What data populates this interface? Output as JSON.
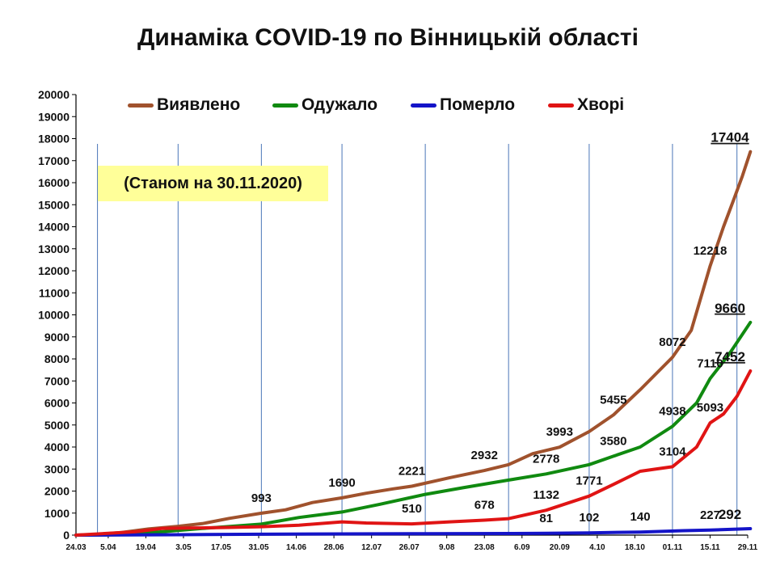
{
  "title": "Динаміка COVID-19 по Вінницькій області",
  "note": "(Станом на 30.11.2020)",
  "chart_data": {
    "type": "line",
    "title": "Динаміка COVID-19 по Вінницькій області",
    "xlabel": "",
    "ylabel": "",
    "ylim": [
      0,
      20000
    ],
    "y_ticks": [
      0,
      1000,
      2000,
      3000,
      4000,
      5000,
      6000,
      7000,
      8000,
      9000,
      10000,
      11000,
      12000,
      13000,
      14000,
      15000,
      16000,
      17000,
      18000,
      19000,
      20000
    ],
    "x_range": [
      "2020-03-24",
      "2020-11-29"
    ],
    "x_ticks": [
      "24.03",
      "5.04",
      "19.04",
      "3.05",
      "17.05",
      "31.05",
      "14.06",
      "28.06",
      "12.07",
      "26.07",
      "9.08",
      "23.08",
      "6.09",
      "20.09",
      "4.10",
      "18.10",
      "01.11",
      "15.11",
      "29.11"
    ],
    "x_tick_dates": [
      "2020-03-24",
      "2020-04-05",
      "2020-04-19",
      "2020-05-03",
      "2020-05-17",
      "2020-05-31",
      "2020-06-14",
      "2020-06-28",
      "2020-07-12",
      "2020-07-26",
      "2020-08-09",
      "2020-08-23",
      "2020-09-06",
      "2020-09-20",
      "2020-10-04",
      "2020-10-18",
      "2020-11-01",
      "2020-11-15",
      "2020-11-29"
    ],
    "gridlines_vertical": [
      "2020-04-01",
      "2020-05-01",
      "2020-06-01",
      "2020-07-01",
      "2020-08-01",
      "2020-09-01",
      "2020-10-01",
      "2020-11-01",
      "2020-11-25"
    ],
    "legend_position": "top",
    "series": [
      {
        "name": "Виявлено",
        "color": "#a0522d",
        "points": [
          [
            "2020-03-24",
            0
          ],
          [
            "2020-04-01",
            30
          ],
          [
            "2020-04-10",
            120
          ],
          [
            "2020-04-20",
            280
          ],
          [
            "2020-05-01",
            400
          ],
          [
            "2020-05-10",
            520
          ],
          [
            "2020-05-20",
            760
          ],
          [
            "2020-06-01",
            993
          ],
          [
            "2020-06-10",
            1150
          ],
          [
            "2020-06-20",
            1480
          ],
          [
            "2020-07-01",
            1690
          ],
          [
            "2020-07-10",
            1900
          ],
          [
            "2020-07-20",
            2100
          ],
          [
            "2020-07-27",
            2221
          ],
          [
            "2020-08-10",
            2600
          ],
          [
            "2020-08-23",
            2932
          ],
          [
            "2020-09-01",
            3200
          ],
          [
            "2020-09-10",
            3700
          ],
          [
            "2020-09-20",
            3993
          ],
          [
            "2020-10-01",
            4700
          ],
          [
            "2020-10-10",
            5455
          ],
          [
            "2020-10-20",
            6600
          ],
          [
            "2020-11-01",
            8072
          ],
          [
            "2020-11-08",
            9300
          ],
          [
            "2020-11-15",
            12218
          ],
          [
            "2020-11-20",
            14000
          ],
          [
            "2020-11-24",
            15300
          ],
          [
            "2020-11-27",
            16300
          ],
          [
            "2020-11-30",
            17404
          ]
        ],
        "labels": [
          [
            "2020-06-01",
            993
          ],
          [
            "2020-07-01",
            1690
          ],
          [
            "2020-07-27",
            2221
          ],
          [
            "2020-08-23",
            2932
          ],
          [
            "2020-09-20",
            3993
          ],
          [
            "2020-10-10",
            5455
          ],
          [
            "2020-11-01",
            8072
          ],
          [
            "2020-11-15",
            12218
          ],
          [
            "2020-11-30",
            17404
          ]
        ]
      },
      {
        "name": "Одужало",
        "color": "#108a10",
        "points": [
          [
            "2020-03-24",
            0
          ],
          [
            "2020-04-10",
            20
          ],
          [
            "2020-04-25",
            150
          ],
          [
            "2020-05-10",
            300
          ],
          [
            "2020-06-01",
            500
          ],
          [
            "2020-06-15",
            800
          ],
          [
            "2020-07-01",
            1050
          ],
          [
            "2020-07-15",
            1400
          ],
          [
            "2020-08-01",
            1850
          ],
          [
            "2020-08-15",
            2150
          ],
          [
            "2020-09-01",
            2500
          ],
          [
            "2020-09-15",
            2778
          ],
          [
            "2020-10-01",
            3200
          ],
          [
            "2020-10-10",
            3580
          ],
          [
            "2020-10-20",
            4000
          ],
          [
            "2020-11-01",
            4938
          ],
          [
            "2020-11-10",
            6000
          ],
          [
            "2020-11-15",
            7110
          ],
          [
            "2020-11-22",
            8200
          ],
          [
            "2020-11-30",
            9660
          ]
        ],
        "labels": [
          [
            "2020-09-15",
            2778
          ],
          [
            "2020-10-10",
            3580
          ],
          [
            "2020-11-01",
            4938
          ],
          [
            "2020-11-15",
            7110
          ],
          [
            "2020-11-30",
            9660
          ]
        ]
      },
      {
        "name": "Померло",
        "color": "#1414c8",
        "points": [
          [
            "2020-03-24",
            0
          ],
          [
            "2020-05-01",
            20
          ],
          [
            "2020-06-01",
            40
          ],
          [
            "2020-07-01",
            55
          ],
          [
            "2020-08-01",
            65
          ],
          [
            "2020-09-01",
            75
          ],
          [
            "2020-09-15",
            81
          ],
          [
            "2020-10-01",
            102
          ],
          [
            "2020-10-20",
            140
          ],
          [
            "2020-11-05",
            200
          ],
          [
            "2020-11-15",
            227
          ],
          [
            "2020-11-30",
            292
          ]
        ],
        "labels": [
          [
            "2020-09-15",
            81
          ],
          [
            "2020-10-01",
            102
          ],
          [
            "2020-10-20",
            140
          ],
          [
            "2020-11-15",
            227
          ],
          [
            "2020-11-30",
            292
          ]
        ]
      },
      {
        "name": "Хворі",
        "color": "#e01414",
        "points": [
          [
            "2020-03-24",
            0
          ],
          [
            "2020-04-15",
            150
          ],
          [
            "2020-04-25",
            300
          ],
          [
            "2020-05-05",
            320
          ],
          [
            "2020-05-20",
            350
          ],
          [
            "2020-06-01",
            380
          ],
          [
            "2020-06-15",
            450
          ],
          [
            "2020-07-01",
            600
          ],
          [
            "2020-07-10",
            550
          ],
          [
            "2020-07-27",
            510
          ],
          [
            "2020-08-10",
            600
          ],
          [
            "2020-08-23",
            678
          ],
          [
            "2020-09-01",
            750
          ],
          [
            "2020-09-15",
            1132
          ],
          [
            "2020-10-01",
            1771
          ],
          [
            "2020-10-10",
            2300
          ],
          [
            "2020-10-20",
            2900
          ],
          [
            "2020-11-01",
            3104
          ],
          [
            "2020-11-10",
            4000
          ],
          [
            "2020-11-15",
            5093
          ],
          [
            "2020-11-20",
            5500
          ],
          [
            "2020-11-25",
            6300
          ],
          [
            "2020-11-30",
            7452
          ]
        ],
        "labels": [
          [
            "2020-07-27",
            510
          ],
          [
            "2020-08-23",
            678
          ],
          [
            "2020-09-15",
            1132
          ],
          [
            "2020-10-01",
            1771
          ],
          [
            "2020-11-01",
            3104
          ],
          [
            "2020-11-15",
            5093
          ],
          [
            "2020-11-30",
            7452
          ]
        ]
      }
    ]
  }
}
